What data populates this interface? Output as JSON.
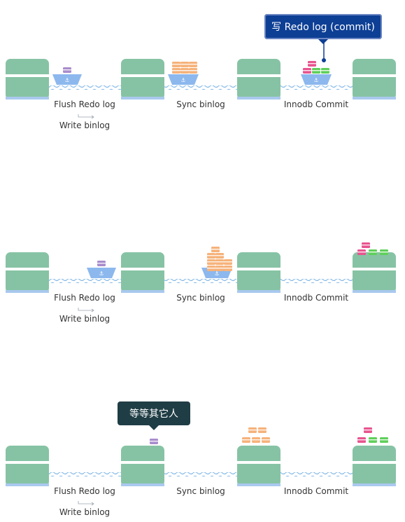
{
  "colors": {
    "building": "#86c3a4",
    "building_divider": "#ffffff",
    "building_base": "#a9c9ee",
    "water": "#7fb6e6",
    "ship_hull": "#8cb8ee",
    "container_purple": "#a98ccc",
    "container_orange": "#f6b27a",
    "container_pink": "#e8548f",
    "container_green": "#5fcf5a",
    "bubble_blue": "#0d3f95",
    "bubble_dark": "#1f3d45"
  },
  "panels": [
    {
      "stages": [
        {
          "label": "Flush Redo log",
          "sublabel": "Write binlog"
        },
        {
          "label": "Sync binlog"
        },
        {
          "label": "Innodb Commit"
        }
      ],
      "bubble": "写 Redo log (commit)"
    },
    {
      "stages": [
        {
          "label": "Flush Redo log",
          "sublabel": "Write binlog"
        },
        {
          "label": "Sync binlog"
        },
        {
          "label": "Innodb Commit"
        }
      ]
    },
    {
      "stages": [
        {
          "label": "Flush Redo log",
          "sublabel": "Write binlog"
        },
        {
          "label": "Sync binlog"
        },
        {
          "label": "Innodb Commit"
        }
      ],
      "bubble": "等等其它人"
    }
  ]
}
